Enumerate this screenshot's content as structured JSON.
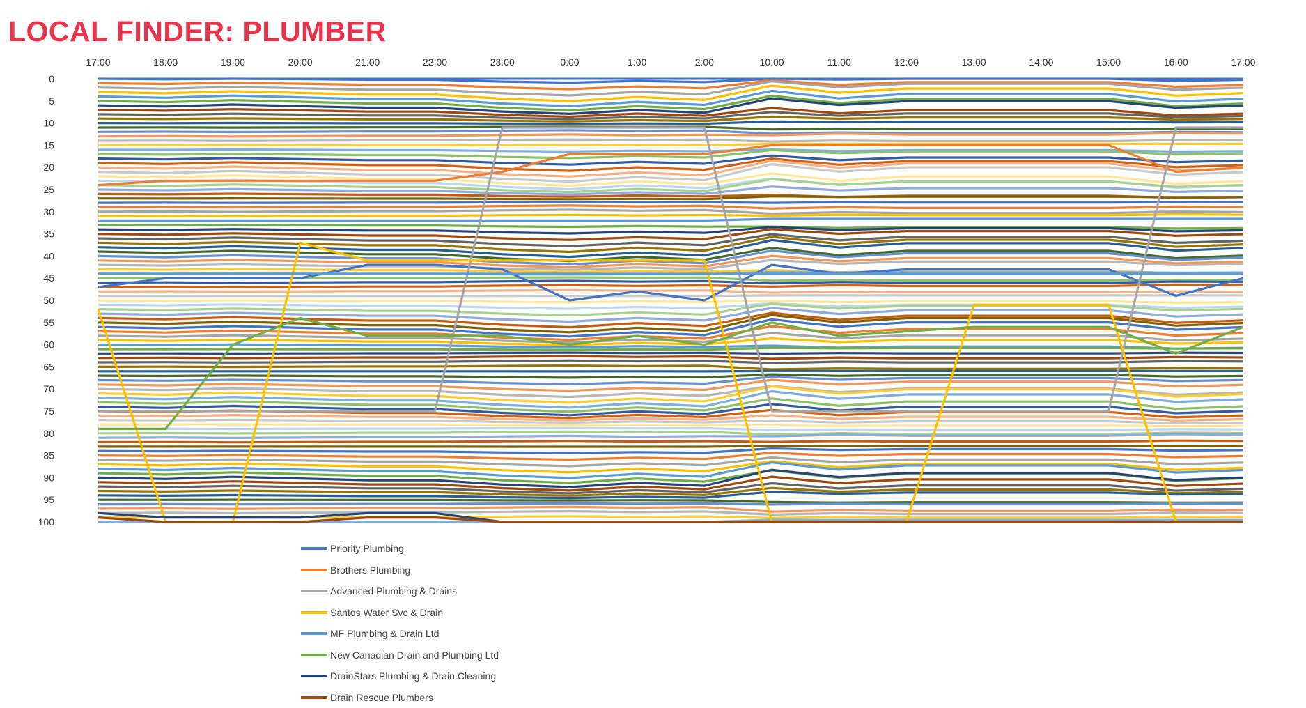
{
  "page": {
    "title": "LOCAL FINDER: PLUMBER"
  },
  "chart_data": {
    "type": "line",
    "title": "LOCAL FINDER: PLUMBER",
    "xlabel": "",
    "ylabel": "",
    "y_reversed": true,
    "ylim": [
      0,
      100
    ],
    "yticks": [
      0,
      5,
      10,
      15,
      20,
      25,
      30,
      35,
      40,
      45,
      50,
      55,
      60,
      65,
      70,
      75,
      80,
      85,
      90,
      95,
      100
    ],
    "categories": [
      "17:00",
      "18:00",
      "19:00",
      "20:00",
      "21:00",
      "22:00",
      "23:00",
      "0:00",
      "1:00",
      "2:00",
      "10:00",
      "11:00",
      "12:00",
      "13:00",
      "14:00",
      "15:00",
      "16:00",
      "17:00"
    ],
    "legend_position": "bottom-left",
    "grid": false,
    "series": [
      {
        "name": "Priority Plumbing",
        "color": "#4472c4",
        "values": [
          47,
          45,
          45,
          45,
          42,
          42,
          43,
          50,
          48,
          50,
          42,
          44,
          43,
          43,
          43,
          43,
          49,
          45
        ]
      },
      {
        "name": "Brothers Plumbing",
        "color": "#ed7d31",
        "values": [
          24,
          23,
          23,
          23,
          23,
          23,
          21,
          17,
          17,
          17,
          15,
          15,
          15,
          15,
          15,
          15,
          21,
          20
        ]
      },
      {
        "name": "Advanced Plumbing & Drains",
        "color": "#a5a5a5",
        "values": [
          75,
          75,
          75,
          75,
          75,
          75,
          11,
          11,
          11,
          11,
          75,
          75,
          75,
          75,
          75,
          75,
          11,
          11
        ]
      },
      {
        "name": "Santos Water Svc & Drain",
        "color": "#ffc000",
        "values": [
          52,
          100,
          100,
          37,
          41,
          41,
          41,
          41,
          41,
          41,
          100,
          100,
          100,
          51,
          51,
          51,
          100,
          100
        ]
      },
      {
        "name": "MF Plumbing & Drain Ltd",
        "color": "#5b9bd5",
        "values": [
          44,
          44,
          44,
          44,
          44,
          44,
          44,
          44,
          44,
          44,
          44,
          44,
          44,
          44,
          44,
          44,
          44,
          44
        ]
      },
      {
        "name": "New Canadian Drain and Plumbing Ltd",
        "color": "#70ad47",
        "values": [
          79,
          79,
          60,
          54,
          58,
          58,
          58,
          60,
          58,
          60,
          55,
          58,
          57,
          56,
          56,
          56,
          62,
          56
        ]
      },
      {
        "name": "DrainStars Plumbing & Drain Cleaning",
        "color": "#264478",
        "values": [
          98,
          99,
          99,
          99,
          98,
          98,
          100,
          100,
          100,
          100,
          100,
          100,
          100,
          100,
          100,
          100,
          100,
          100
        ]
      },
      {
        "name": "Drain Rescue Plumbers",
        "color": "#9e480e",
        "values": [
          99,
          100,
          100,
          100,
          99,
          99,
          100,
          100,
          100,
          100,
          100,
          100,
          100,
          100,
          100,
          100,
          100,
          100
        ]
      }
    ]
  }
}
